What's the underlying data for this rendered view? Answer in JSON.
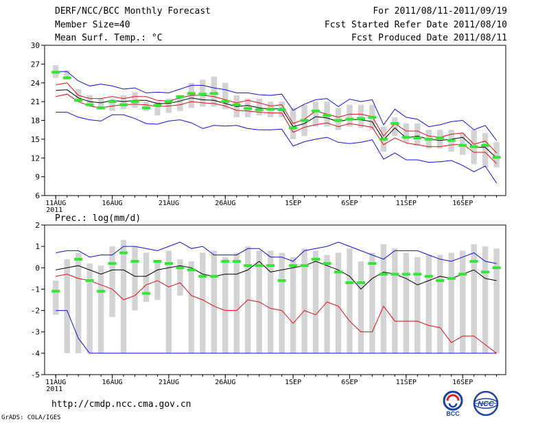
{
  "header": {
    "title": "DERF/NCC/BCC Monthly Forecast",
    "member_size": "Member Size=40",
    "variable_temp": "Mean Surf. Temp.: °C",
    "period": "For 2011/08/11-2011/09/19",
    "refer_date": "Fcst Started Refer Date 2011/08/10",
    "produced_date": "Fcst Produced Date 2011/08/11"
  },
  "footer": {
    "url": "http://cmdp.ncc.cma.gov.cn",
    "grads": "GrADS: COLA/IGES",
    "logo_bcc": "BCC",
    "logo_ncc": "NCC"
  },
  "colors": {
    "box": "#d3d3d6",
    "median": "#000000",
    "inner": "#e01010",
    "outer": "#1010dd",
    "obs": "#33e633"
  },
  "chart_data": [
    {
      "type": "box",
      "title": "Mean Surf. Temp.: °C",
      "ylim": [
        6,
        30
      ],
      "yticks": [
        6,
        9,
        12,
        15,
        18,
        21,
        24,
        27,
        30
      ],
      "xticks": [
        {
          "day": 1,
          "label": "11AUG",
          "sub": "2011"
        },
        {
          "day": 6,
          "label": "16AUG"
        },
        {
          "day": 11,
          "label": "21AUG"
        },
        {
          "day": 16,
          "label": "26AUG"
        },
        {
          "day": 22,
          "label": "1SEP"
        },
        {
          "day": 27,
          "label": "6SEP"
        },
        {
          "day": 32,
          "label": "11SEP"
        },
        {
          "day": 37,
          "label": "16SEP"
        }
      ],
      "days": 40,
      "box_low": [
        24.8,
        24.5,
        21.2,
        20.5,
        19.8,
        19.5,
        19.8,
        20.0,
        19.5,
        18.8,
        19.2,
        19.5,
        20.0,
        20.2,
        20.2,
        19.8,
        18.5,
        18.5,
        18.8,
        18.5,
        18.5,
        15.0,
        15.5,
        17.0,
        17.0,
        16.5,
        17.0,
        16.8,
        16.5,
        13.0,
        15.5,
        14.5,
        14.0,
        13.5,
        13.5,
        13.0,
        12.5,
        11.0,
        10.5,
        10.5
      ],
      "box_high": [
        26.8,
        26.0,
        23.0,
        22.0,
        21.5,
        21.5,
        22.0,
        22.5,
        21.0,
        21.0,
        21.5,
        22.0,
        24.0,
        24.5,
        25.0,
        24.0,
        22.0,
        21.5,
        21.5,
        21.0,
        21.0,
        20.0,
        20.5,
        21.0,
        21.0,
        20.0,
        20.5,
        20.5,
        20.5,
        17.0,
        18.5,
        17.5,
        17.5,
        16.5,
        16.5,
        16.5,
        16.0,
        16.5,
        16.0,
        14.5
      ],
      "median": [
        22.8,
        22.9,
        21.6,
        21.0,
        20.8,
        21.2,
        21.0,
        21.2,
        21.2,
        20.7,
        20.7,
        21.1,
        21.6,
        21.3,
        21.2,
        20.7,
        20.2,
        20.4,
        20.0,
        19.8,
        19.9,
        17.0,
        17.5,
        18.6,
        18.4,
        17.8,
        18.2,
        18.1,
        17.8,
        14.9,
        16.8,
        15.2,
        15.5,
        15.0,
        14.8,
        15.0,
        15.3,
        13.7,
        13.7,
        12.0
      ],
      "inner_high": [
        23.7,
        24.0,
        22.0,
        21.5,
        21.5,
        21.8,
        21.5,
        21.8,
        21.8,
        21.2,
        21.1,
        21.6,
        22.0,
        22.0,
        21.8,
        21.3,
        20.8,
        21.2,
        20.8,
        20.3,
        20.5,
        17.5,
        18.2,
        19.5,
        19.0,
        18.5,
        19.0,
        19.0,
        18.6,
        15.5,
        17.5,
        16.3,
        16.3,
        15.5,
        15.3,
        15.8,
        16.0,
        14.2,
        14.7,
        12.8
      ],
      "inner_low": [
        21.8,
        22.2,
        21.0,
        20.3,
        20.0,
        20.3,
        20.5,
        20.6,
        20.5,
        20.2,
        20.3,
        20.5,
        21.0,
        20.8,
        20.7,
        20.3,
        19.6,
        19.5,
        19.3,
        19.2,
        19.2,
        16.1,
        16.9,
        17.3,
        17.6,
        17.0,
        17.5,
        17.2,
        16.9,
        14.1,
        15.2,
        14.4,
        14.1,
        13.8,
        13.8,
        14.1,
        14.2,
        12.9,
        12.9,
        11.1
      ],
      "outer_high": [
        25.8,
        25.8,
        24.3,
        23.5,
        23.8,
        23.5,
        23.0,
        23.2,
        22.4,
        22.5,
        22.4,
        23.0,
        23.6,
        23.6,
        23.2,
        22.9,
        22.4,
        22.4,
        22.1,
        22.0,
        22.2,
        19.6,
        20.6,
        21.3,
        21.5,
        20.2,
        21.4,
        21.0,
        21.3,
        17.3,
        19.8,
        18.5,
        18.2,
        17.0,
        17.3,
        17.8,
        18.0,
        16.5,
        17.2,
        14.8
      ],
      "outer_low": [
        19.3,
        19.3,
        18.5,
        18.1,
        17.9,
        18.9,
        18.9,
        18.3,
        17.5,
        17.4,
        17.9,
        18.1,
        17.6,
        16.7,
        17.2,
        17.1,
        17.2,
        16.7,
        16.5,
        16.5,
        16.6,
        13.9,
        14.6,
        15.0,
        15.3,
        14.5,
        14.3,
        14.5,
        14.9,
        11.8,
        12.8,
        11.7,
        11.7,
        11.3,
        11.4,
        11.6,
        10.8,
        9.8,
        10.7,
        8.0
      ],
      "observed": [
        25.7,
        24.8,
        21.2,
        20.5,
        20.0,
        21.0,
        20.5,
        21.0,
        20.0,
        20.4,
        21.0,
        21.8,
        22.3,
        22.2,
        22.3,
        21.0,
        20.5,
        19.9,
        19.7,
        19.8,
        19.7,
        16.8,
        18.0,
        19.5,
        18.8,
        18.0,
        18.2,
        18.3,
        18.5,
        15.0,
        17.5,
        15.3,
        15.2,
        15.0,
        15.2,
        14.8,
        14.0,
        13.8,
        14.0,
        12.1
      ]
    },
    {
      "type": "box",
      "title": "Prec.: log(mm/d)",
      "ylim": [
        -5,
        2
      ],
      "yticks": [
        -5,
        -4,
        -3,
        -2,
        -1,
        0,
        1,
        2
      ],
      "xticks": [
        {
          "day": 1,
          "label": "11AUG",
          "sub": "2011"
        },
        {
          "day": 6,
          "label": "16AUG"
        },
        {
          "day": 11,
          "label": "21AUG"
        },
        {
          "day": 16,
          "label": "26AUG"
        },
        {
          "day": 22,
          "label": "1SEP"
        },
        {
          "day": 27,
          "label": "6SEP"
        },
        {
          "day": 32,
          "label": "11SEP"
        },
        {
          "day": 37,
          "label": "16SEP"
        }
      ],
      "days": 40,
      "box_low": [
        -2.2,
        -4.0,
        -4.0,
        -4.0,
        -4.0,
        -2.3,
        -4.0,
        -2.0,
        -1.6,
        -1.5,
        -4.0,
        -1.3,
        -4.0,
        -4.0,
        -4.0,
        -4.0,
        -4.0,
        -4.0,
        -4.0,
        -4.0,
        -4.0,
        -4.0,
        -4.0,
        -4.0,
        -4.0,
        -4.0,
        -4.0,
        -4.0,
        -4.0,
        -4.0,
        -4.0,
        -4.0,
        -4.0,
        -4.0,
        -4.0,
        -4.0,
        -4.0,
        -4.0,
        -4.0,
        -4.0
      ],
      "box_high": [
        -0.6,
        0.4,
        0.7,
        0.2,
        0.1,
        1.0,
        1.3,
        1.0,
        0.7,
        0.3,
        0.8,
        0.4,
        0.3,
        0.7,
        0.8,
        0.5,
        0.7,
        1.0,
        0.8,
        0.8,
        0.7,
        0.5,
        0.9,
        0.8,
        0.6,
        0.7,
        0.9,
        0.3,
        0.7,
        1.1,
        0.9,
        0.7,
        0.5,
        0.6,
        0.6,
        0.7,
        0.8,
        1.1,
        1.0,
        0.9
      ],
      "median": [
        -0.1,
        0.0,
        0.1,
        -0.1,
        -0.3,
        -0.1,
        -0.1,
        -0.4,
        -0.4,
        -0.1,
        0.0,
        0.1,
        0.0,
        -0.3,
        -0.4,
        -0.3,
        -0.3,
        -0.1,
        0.3,
        -0.2,
        -0.1,
        0.0,
        0.1,
        0.3,
        0.1,
        -0.1,
        -0.4,
        -1.0,
        -0.5,
        -0.2,
        -0.3,
        -0.5,
        -0.8,
        -0.6,
        -0.4,
        -0.5,
        -0.3,
        -0.1,
        -0.5,
        -0.6
      ],
      "outer_high": [
        0.7,
        0.8,
        0.8,
        0.5,
        0.6,
        0.6,
        1.0,
        1.0,
        0.9,
        0.8,
        1.0,
        1.2,
        0.9,
        1.0,
        0.6,
        0.6,
        0.6,
        0.9,
        0.9,
        0.5,
        0.5,
        0.3,
        0.8,
        0.9,
        1.0,
        1.2,
        1.0,
        0.8,
        0.6,
        0.4,
        0.8,
        0.8,
        0.8,
        0.6,
        0.4,
        0.3,
        0.5,
        0.7,
        0.3,
        0.2
      ],
      "inner_low": [
        -0.4,
        -0.3,
        -0.5,
        -0.6,
        -0.8,
        -1.0,
        -1.5,
        -1.3,
        -0.8,
        -0.6,
        -0.9,
        -0.7,
        -1.3,
        -1.5,
        -1.8,
        -2.0,
        -2.0,
        -1.5,
        -1.6,
        -1.9,
        -2.0,
        -2.6,
        -2.0,
        -2.2,
        -1.6,
        -1.8,
        -2.5,
        -3.0,
        -3.0,
        -1.8,
        -2.5,
        -2.5,
        -2.5,
        -2.7,
        -2.8,
        -3.5,
        -3.2,
        -3.2,
        -3.6,
        -4.0
      ],
      "outer_low": [
        -2.0,
        -2.0,
        -3.3,
        -4.0,
        -4.0,
        -4.0,
        -4.0,
        -4.0,
        -4.0,
        -4.0,
        -4.0,
        -4.0,
        -4.0,
        -4.0,
        -4.0,
        -4.0,
        -4.0,
        -4.0,
        -4.0,
        -4.0,
        -4.0,
        -4.0,
        -4.0,
        -4.0,
        -4.0,
        -4.0,
        -4.0,
        -4.0,
        -4.0,
        -4.0,
        -4.0,
        -4.0,
        -4.0,
        -4.0,
        -4.0,
        -4.0,
        -4.0,
        -4.0,
        -4.0,
        -4.0
      ],
      "observed": [
        -1.1,
        null,
        0.4,
        -0.6,
        -1.1,
        0.2,
        0.7,
        0.3,
        -1.2,
        0.3,
        0.2,
        0.0,
        -0.1,
        -0.4,
        -0.4,
        0.3,
        0.3,
        0.1,
        0.1,
        0.1,
        -0.6,
        0.1,
        0.1,
        0.4,
        0.2,
        -0.2,
        -0.7,
        -0.7,
        0.2,
        -0.3,
        -0.3,
        -0.3,
        -0.3,
        -0.4,
        -0.6,
        -0.5,
        -0.3,
        0.3,
        -0.2,
        0.0
      ]
    }
  ]
}
